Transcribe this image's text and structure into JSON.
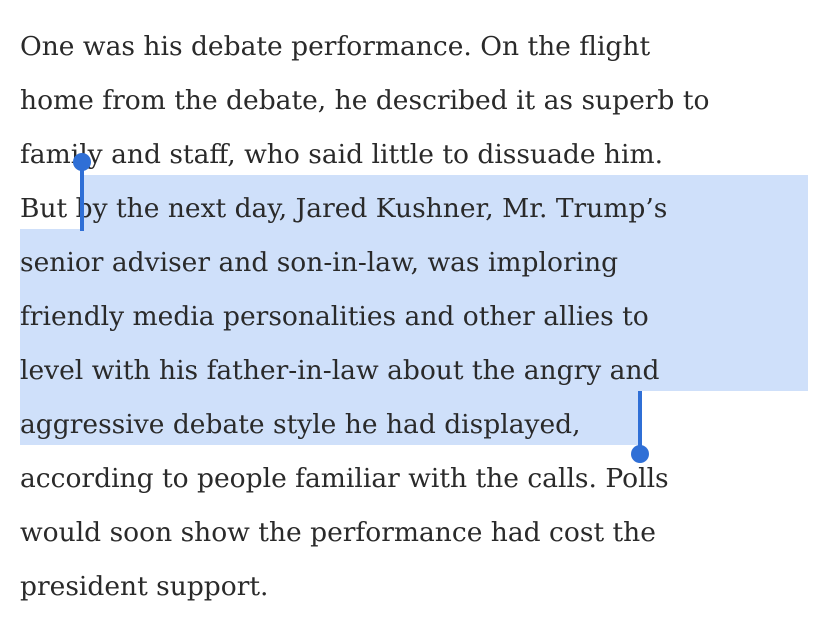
{
  "article": {
    "lines": [
      "One was his debate performance. On the flight",
      "home from the debate, he described it as superb to",
      "family and staff, who said little to dissuade him.",
      "But",
      "by the next day, Jared Kushner, Mr. Trump’s",
      "senior adviser and son-in-law, was imploring",
      "friendly media personalities and other allies to",
      "level with his father-in-law about the angry and",
      "aggressive debate style he had displayed",
      ",",
      "according to people familiar with the calls. Polls",
      "would soon show the performance had cost the",
      "president support."
    ]
  },
  "selection": {
    "highlight_color": "#cfe0fa",
    "handle_color": "#2f6fd6"
  }
}
